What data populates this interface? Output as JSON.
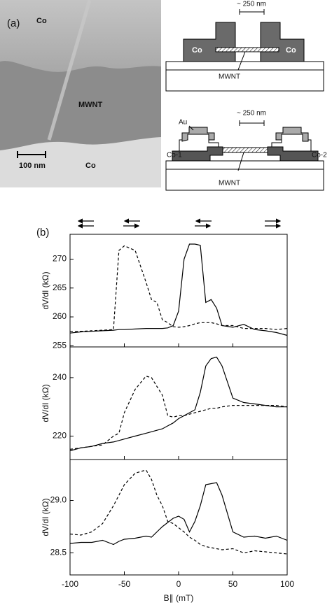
{
  "panel_a": {
    "label": "(a)",
    "micrograph": {
      "co_top": "Co",
      "mwnt": "MWNT",
      "scale": "100 nm",
      "co_bottom": "Co"
    },
    "schematic_1": {
      "gap": "~ 250 nm",
      "co_left": "Co",
      "co_right": "Co",
      "tube": "MWNT"
    },
    "schematic_2": {
      "au": "Au",
      "gap": "~ 250 nm",
      "co1": "Co-1",
      "co2": "Co-2",
      "tube": "MWNT"
    }
  },
  "panel_b_label": "(b)",
  "chart_data": [
    {
      "type": "line",
      "ylabel": "dV/dI (kΩ)",
      "xlim": [
        -100,
        100
      ],
      "ylim": [
        254.8,
        274.3
      ],
      "yticks": [
        255,
        260,
        265,
        270
      ],
      "x": [
        -100,
        -90,
        -80,
        -70,
        -60,
        -55,
        -50,
        -40,
        -30,
        -25,
        -20,
        -15,
        -10,
        -5,
        0,
        5,
        10,
        15,
        20,
        25,
        30,
        35,
        40,
        50,
        60,
        70,
        80,
        90,
        100
      ],
      "series": [
        {
          "color": "#000000",
          "dashed": false,
          "values": [
            257.2,
            257.4,
            257.5,
            257.6,
            257.7,
            257.8,
            257.8,
            257.9,
            258,
            258,
            258,
            258,
            258.1,
            258.5,
            261,
            270,
            272.6,
            272.6,
            272.4,
            262.5,
            263,
            261.5,
            258.5,
            258.2,
            258.7,
            257.8,
            257.6,
            257.3,
            256.8
          ]
        },
        {
          "color": "#000000",
          "dashed": true,
          "values": [
            257.5,
            257.5,
            257.6,
            257.7,
            257.8,
            271.5,
            272.3,
            271.5,
            266,
            263,
            262.5,
            259.5,
            259,
            258.3,
            258.2,
            258.3,
            258.5,
            258.8,
            259,
            259,
            259,
            258.8,
            258.5,
            258.5,
            258,
            258,
            258,
            257.8,
            258
          ]
        }
      ]
    },
    {
      "type": "line",
      "ylabel": "dV/dI (kΩ)",
      "xlim": [
        -100,
        100
      ],
      "ylim": [
        212,
        250.5
      ],
      "yticks": [
        220,
        240
      ],
      "x": [
        -100,
        -90,
        -80,
        -70,
        -60,
        -55,
        -50,
        -40,
        -30,
        -25,
        -20,
        -15,
        -10,
        -5,
        0,
        5,
        10,
        15,
        20,
        25,
        30,
        35,
        40,
        50,
        60,
        70,
        80,
        90,
        100
      ],
      "series": [
        {
          "color": "#000000",
          "dashed": false,
          "values": [
            215,
            216,
            216.5,
            217.5,
            218,
            218.5,
            219,
            220,
            221,
            221.5,
            222,
            222.5,
            223.5,
            224.5,
            226,
            227,
            228,
            229,
            235,
            244,
            246.5,
            247,
            244,
            233,
            231.5,
            231,
            230.5,
            230,
            230
          ]
        },
        {
          "color": "#000000",
          "dashed": true,
          "values": [
            215.5,
            216,
            216.5,
            217,
            220,
            221,
            228,
            236,
            240.5,
            240,
            237,
            234,
            227,
            226.5,
            227,
            227,
            227.5,
            228,
            228.5,
            229,
            229.5,
            229.5,
            230,
            230.5,
            230.5,
            230.5,
            230.5,
            230.5,
            230
          ]
        }
      ]
    },
    {
      "type": "line",
      "ylabel": "dV/dI (kΩ)",
      "xlabel": "B∥ (mT)",
      "xlim": [
        -100,
        100
      ],
      "ylim": [
        28.29,
        29.39
      ],
      "xticks": [
        -100,
        -50,
        0,
        50,
        100
      ],
      "yticks": [
        {
          "value": 28.5,
          "label": "28.5"
        },
        {
          "value": 29,
          "label": "29.0"
        }
      ],
      "x": [
        -100,
        -90,
        -80,
        -70,
        -60,
        -55,
        -50,
        -40,
        -30,
        -25,
        -20,
        -15,
        -10,
        -5,
        0,
        5,
        10,
        15,
        20,
        25,
        30,
        35,
        40,
        50,
        60,
        70,
        80,
        90,
        100
      ],
      "series": [
        {
          "color": "#000000",
          "dashed": false,
          "values": [
            28.59,
            28.6,
            28.6,
            28.62,
            28.58,
            28.61,
            28.63,
            28.64,
            28.66,
            28.65,
            28.7,
            28.75,
            28.79,
            28.83,
            28.85,
            28.82,
            28.7,
            28.8,
            28.95,
            29.15,
            29.16,
            29.17,
            29.05,
            28.7,
            28.65,
            28.66,
            28.64,
            28.66,
            28.62
          ]
        },
        {
          "color": "#000000",
          "dashed": true,
          "values": [
            28.68,
            28.67,
            28.7,
            28.78,
            28.95,
            29.05,
            29.15,
            29.26,
            29.29,
            29.2,
            29.05,
            28.95,
            28.8,
            28.78,
            28.74,
            28.7,
            28.65,
            28.62,
            28.58,
            28.56,
            28.55,
            28.54,
            28.53,
            28.54,
            28.5,
            28.52,
            28.51,
            28.5,
            28.49
          ]
        }
      ]
    }
  ]
}
